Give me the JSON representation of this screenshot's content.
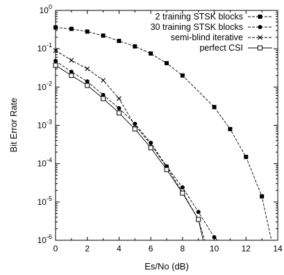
{
  "chart_data": {
    "type": "line",
    "title": "",
    "xlabel": "Es/No (dB)",
    "ylabel": "Bit Error Rate",
    "xlim": [
      0,
      14
    ],
    "ylim": [
      1e-06,
      1
    ],
    "yscale": "log",
    "grid": false,
    "legend_position": "top-right",
    "x_ticks": [
      "0",
      "2",
      "4",
      "6",
      "8",
      "10",
      "12",
      "14"
    ],
    "y_ticks": [
      {
        "base": "10",
        "exp": "0"
      },
      {
        "base": "10",
        "exp": "-1"
      },
      {
        "base": "10",
        "exp": "-2"
      },
      {
        "base": "10",
        "exp": "-3"
      },
      {
        "base": "10",
        "exp": "-4"
      },
      {
        "base": "10",
        "exp": "-5"
      },
      {
        "base": "10",
        "exp": "-6"
      }
    ],
    "series": [
      {
        "name": "2 training STSK blocks",
        "marker": "filled-square",
        "dash": "dashed",
        "points": [
          [
            0,
            0.36
          ],
          [
            1,
            0.33
          ],
          [
            2,
            0.28
          ],
          [
            3,
            0.22
          ],
          [
            4,
            0.16
          ],
          [
            5,
            0.115
          ],
          [
            6,
            0.075
          ],
          [
            7,
            0.042
          ],
          [
            8,
            0.02
          ],
          [
            10,
            0.003
          ],
          [
            11,
            0.0008
          ],
          [
            12,
            0.00015
          ],
          [
            13,
            1.4e-05
          ],
          [
            13.6,
            1e-06
          ]
        ]
      },
      {
        "name": "30 training STSK blocks",
        "marker": "filled-circle",
        "dash": "dashed",
        "points": [
          [
            0,
            0.048
          ],
          [
            1,
            0.025
          ],
          [
            2,
            0.014
          ],
          [
            3,
            0.0062
          ],
          [
            4,
            0.0028
          ],
          [
            5,
            0.0011
          ],
          [
            6,
            0.00035
          ],
          [
            7,
            8.5e-05
          ],
          [
            8,
            2.4e-05
          ],
          [
            9,
            5.5e-06
          ],
          [
            10,
            1.2e-06
          ],
          [
            10.2,
            1e-06
          ]
        ]
      },
      {
        "name": "semi-blind iterative",
        "marker": "cross",
        "dash": "dashed",
        "points": [
          [
            0,
            0.09
          ],
          [
            1,
            0.05
          ],
          [
            2,
            0.03
          ],
          [
            3,
            0.015
          ],
          [
            4,
            0.005
          ],
          [
            5,
            0.001
          ],
          [
            6,
            0.00032
          ],
          [
            7,
            8.2e-05
          ],
          [
            8,
            1.8e-05
          ],
          [
            9,
            3.5e-06
          ],
          [
            9.4,
            1e-06
          ]
        ]
      },
      {
        "name": "perfect CSI",
        "marker": "open-square",
        "dash": "solid",
        "points": [
          [
            0,
            0.037
          ],
          [
            1,
            0.02
          ],
          [
            2,
            0.011
          ],
          [
            3,
            0.005
          ],
          [
            4,
            0.0021
          ],
          [
            5,
            0.0008
          ],
          [
            6,
            0.00026
          ],
          [
            7,
            7e-05
          ],
          [
            8,
            1.7e-05
          ],
          [
            9,
            3.5e-06
          ],
          [
            9.3,
            1e-06
          ]
        ]
      }
    ]
  }
}
